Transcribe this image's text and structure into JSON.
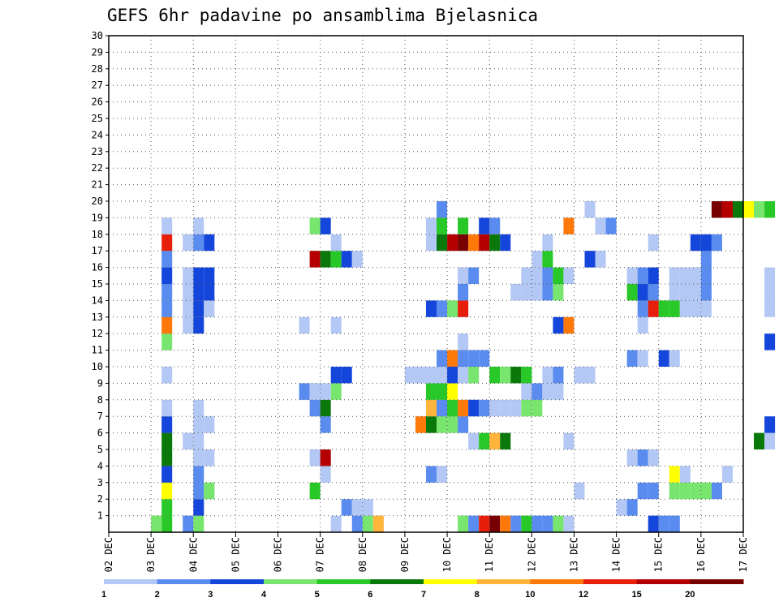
{
  "chart_data": {
    "type": "heatmap",
    "title": "GEFS 6hr padavine po ansamblima Bjelasnica",
    "xlabel": "",
    "ylabel": "",
    "x_ticks": [
      "02 DEC",
      "03 DEC",
      "04 DEC",
      "05 DEC",
      "06 DEC",
      "07 DEC",
      "08 DEC",
      "09 DEC",
      "10 DEC",
      "11 DEC",
      "12 DEC",
      "13 DEC",
      "14 DEC",
      "15 DEC",
      "16 DEC",
      "17 DEC"
    ],
    "y_ticks": [
      1,
      2,
      3,
      4,
      5,
      6,
      7,
      8,
      9,
      10,
      11,
      12,
      13,
      14,
      15,
      16,
      17,
      18,
      19,
      20,
      21,
      22,
      23,
      24,
      25,
      26,
      27,
      28,
      29,
      30
    ],
    "xlim": [
      "02 DEC 00Z",
      "17 DEC 00Z"
    ],
    "ylim": [
      0,
      30
    ],
    "grid": true,
    "legend_position": "bottom",
    "time_step_hours": 6,
    "legend": {
      "thresholds": [
        "1",
        "2",
        "3",
        "4",
        "5",
        "6",
        "7",
        "8",
        "10",
        "12",
        "15",
        "20"
      ],
      "colors": [
        "#b4c8f5",
        "#5a8cf0",
        "#1446dc",
        "#78e66e",
        "#28c828",
        "#0a780a",
        "#ffff00",
        "#ffb43c",
        "#ff780a",
        "#e61e0a",
        "#b40000",
        "#780000"
      ]
    },
    "members": [
      {
        "member": 1,
        "cells": [
          [
            "03 DEC 12Z",
            5
          ],
          [
            "03 DEC 06Z",
            4
          ],
          [
            "04 DEC 00Z",
            2
          ],
          [
            "04 DEC 06Z",
            4
          ],
          [
            "07 DEC 12Z",
            1
          ],
          [
            "08 DEC 00Z",
            2
          ],
          [
            "08 DEC 06Z",
            4
          ],
          [
            "08 DEC 12Z",
            8
          ],
          [
            "10 DEC 12Z",
            4
          ],
          [
            "10 DEC 18Z",
            2
          ],
          [
            "11 DEC 00Z",
            12
          ],
          [
            "11 DEC 06Z",
            20
          ],
          [
            "11 DEC 12Z",
            10
          ],
          [
            "11 DEC 18Z",
            2
          ],
          [
            "12 DEC 00Z",
            5
          ],
          [
            "12 DEC 06Z",
            2
          ],
          [
            "12 DEC 12Z",
            2
          ],
          [
            "12 DEC 18Z",
            4
          ],
          [
            "13 DEC 00Z",
            1
          ],
          [
            "15 DEC 00Z",
            3
          ],
          [
            "15 DEC 06Z",
            2
          ],
          [
            "15 DEC 12Z",
            2
          ]
        ]
      },
      {
        "member": 2,
        "cells": [
          [
            "03 DEC 12Z",
            5
          ],
          [
            "04 DEC 06Z",
            3
          ],
          [
            "07 DEC 18Z",
            2
          ],
          [
            "08 DEC 00Z",
            1
          ],
          [
            "08 DEC 06Z",
            1
          ],
          [
            "14 DEC 06Z",
            1
          ],
          [
            "14 DEC 12Z",
            2
          ]
        ]
      },
      {
        "member": 3,
        "cells": [
          [
            "03 DEC 12Z",
            7
          ],
          [
            "04 DEC 06Z",
            2
          ],
          [
            "04 DEC 12Z",
            4
          ],
          [
            "07 DEC 00Z",
            5
          ],
          [
            "13 DEC 06Z",
            1
          ],
          [
            "14 DEC 18Z",
            2
          ],
          [
            "15 DEC 00Z",
            2
          ],
          [
            "15 DEC 12Z",
            4
          ],
          [
            "15 DEC 18Z",
            4
          ],
          [
            "16 DEC 00Z",
            4
          ],
          [
            "16 DEC 06Z",
            4
          ],
          [
            "16 DEC 12Z",
            2
          ]
        ]
      },
      {
        "member": 4,
        "cells": [
          [
            "03 DEC 12Z",
            3
          ],
          [
            "04 DEC 06Z",
            2
          ],
          [
            "07 DEC 06Z",
            1
          ],
          [
            "09 DEC 18Z",
            2
          ],
          [
            "10 DEC 00Z",
            1
          ],
          [
            "15 DEC 12Z",
            7
          ],
          [
            "15 DEC 18Z",
            1
          ],
          [
            "16 DEC 18Z",
            1
          ]
        ]
      },
      {
        "member": 5,
        "cells": [
          [
            "03 DEC 12Z",
            6
          ],
          [
            "04 DEC 06Z",
            1
          ],
          [
            "04 DEC 12Z",
            1
          ],
          [
            "07 DEC 00Z",
            1
          ],
          [
            "07 DEC 06Z",
            15
          ],
          [
            "14 DEC 12Z",
            1
          ],
          [
            "14 DEC 18Z",
            2
          ],
          [
            "15 DEC 00Z",
            1
          ]
        ]
      },
      {
        "member": 6,
        "cells": [
          [
            "03 DEC 12Z",
            6
          ],
          [
            "04 DEC 00Z",
            1
          ],
          [
            "04 DEC 06Z",
            1
          ],
          [
            "10 DEC 18Z",
            1
          ],
          [
            "11 DEC 00Z",
            5
          ],
          [
            "11 DEC 06Z",
            8
          ],
          [
            "11 DEC 12Z",
            6
          ],
          [
            "13 DEC 00Z",
            1
          ],
          [
            "17 DEC 12Z",
            6
          ],
          [
            "17 DEC 18Z",
            1
          ]
        ]
      },
      {
        "member": 7,
        "cells": [
          [
            "03 DEC 12Z",
            3
          ],
          [
            "04 DEC 06Z",
            1
          ],
          [
            "04 DEC 12Z",
            1
          ],
          [
            "07 DEC 06Z",
            2
          ],
          [
            "09 DEC 12Z",
            10
          ],
          [
            "09 DEC 18Z",
            6
          ],
          [
            "10 DEC 00Z",
            4
          ],
          [
            "10 DEC 06Z",
            4
          ],
          [
            "10 DEC 12Z",
            2
          ],
          [
            "17 DEC 18Z",
            3
          ]
        ]
      },
      {
        "member": 8,
        "cells": [
          [
            "03 DEC 12Z",
            1
          ],
          [
            "04 DEC 06Z",
            1
          ],
          [
            "07 DEC 00Z",
            2
          ],
          [
            "07 DEC 06Z",
            6
          ],
          [
            "09 DEC 18Z",
            8
          ],
          [
            "10 DEC 00Z",
            2
          ],
          [
            "10 DEC 06Z",
            5
          ],
          [
            "10 DEC 12Z",
            10
          ],
          [
            "10 DEC 18Z",
            3
          ],
          [
            "11 DEC 00Z",
            2
          ],
          [
            "11 DEC 06Z",
            1
          ],
          [
            "11 DEC 12Z",
            1
          ],
          [
            "11 DEC 18Z",
            1
          ],
          [
            "12 DEC 00Z",
            4
          ],
          [
            "12 DEC 06Z",
            4
          ]
        ]
      },
      {
        "member": 9,
        "cells": [
          [
            "06 DEC 18Z",
            2
          ],
          [
            "07 DEC 00Z",
            1
          ],
          [
            "07 DEC 06Z",
            1
          ],
          [
            "07 DEC 12Z",
            4
          ],
          [
            "09 DEC 18Z",
            5
          ],
          [
            "10 DEC 00Z",
            5
          ],
          [
            "10 DEC 06Z",
            7
          ],
          [
            "12 DEC 00Z",
            1
          ],
          [
            "12 DEC 06Z",
            2
          ],
          [
            "12 DEC 12Z",
            1
          ],
          [
            "12 DEC 18Z",
            1
          ]
        ]
      },
      {
        "member": 10,
        "cells": [
          [
            "03 DEC 12Z",
            1
          ],
          [
            "07 DEC 12Z",
            3
          ],
          [
            "07 DEC 18Z",
            3
          ],
          [
            "09 DEC 06Z",
            1
          ],
          [
            "09 DEC 12Z",
            1
          ],
          [
            "09 DEC 18Z",
            1
          ],
          [
            "10 DEC 00Z",
            1
          ],
          [
            "10 DEC 06Z",
            3
          ],
          [
            "10 DEC 12Z",
            1
          ],
          [
            "10 DEC 18Z",
            4
          ],
          [
            "11 DEC 06Z",
            5
          ],
          [
            "11 DEC 12Z",
            4
          ],
          [
            "11 DEC 18Z",
            6
          ],
          [
            "12 DEC 00Z",
            5
          ],
          [
            "12 DEC 12Z",
            1
          ],
          [
            "12 DEC 18Z",
            2
          ],
          [
            "13 DEC 06Z",
            1
          ],
          [
            "13 DEC 12Z",
            1
          ]
        ]
      },
      {
        "member": 11,
        "cells": [
          [
            "10 DEC 00Z",
            2
          ],
          [
            "10 DEC 06Z",
            10
          ],
          [
            "10 DEC 12Z",
            2
          ],
          [
            "10 DEC 18Z",
            2
          ],
          [
            "11 DEC 00Z",
            2
          ],
          [
            "14 DEC 12Z",
            2
          ],
          [
            "14 DEC 18Z",
            1
          ],
          [
            "15 DEC 06Z",
            3
          ],
          [
            "15 DEC 12Z",
            1
          ]
        ]
      },
      {
        "member": 12,
        "cells": [
          [
            "03 DEC 12Z",
            4
          ],
          [
            "10 DEC 12Z",
            1
          ],
          [
            "17 DEC 18Z",
            3
          ]
        ]
      },
      {
        "member": 13,
        "cells": [
          [
            "03 DEC 12Z",
            10
          ],
          [
            "04 DEC 00Z",
            1
          ],
          [
            "04 DEC 06Z",
            3
          ],
          [
            "06 DEC 18Z",
            1
          ],
          [
            "07 DEC 12Z",
            1
          ],
          [
            "12 DEC 18Z",
            3
          ],
          [
            "13 DEC 00Z",
            10
          ],
          [
            "14 DEC 18Z",
            1
          ]
        ]
      },
      {
        "member": 14,
        "cells": [
          [
            "03 DEC 12Z",
            2
          ],
          [
            "04 DEC 00Z",
            1
          ],
          [
            "04 DEC 06Z",
            3
          ],
          [
            "04 DEC 12Z",
            1
          ],
          [
            "09 DEC 18Z",
            3
          ],
          [
            "10 DEC 00Z",
            2
          ],
          [
            "10 DEC 06Z",
            4
          ],
          [
            "10 DEC 12Z",
            12
          ],
          [
            "14 DEC 18Z",
            2
          ],
          [
            "15 DEC 00Z",
            12
          ],
          [
            "15 DEC 06Z",
            5
          ],
          [
            "15 DEC 12Z",
            5
          ],
          [
            "15 DEC 18Z",
            1
          ],
          [
            "16 DEC 00Z",
            1
          ],
          [
            "16 DEC 06Z",
            1
          ],
          [
            "17 DEC 18Z",
            1
          ]
        ]
      },
      {
        "member": 15,
        "cells": [
          [
            "03 DEC 12Z",
            2
          ],
          [
            "04 DEC 00Z",
            1
          ],
          [
            "04 DEC 06Z",
            3
          ],
          [
            "04 DEC 12Z",
            3
          ],
          [
            "10 DEC 12Z",
            2
          ],
          [
            "11 DEC 18Z",
            1
          ],
          [
            "12 DEC 00Z",
            1
          ],
          [
            "12 DEC 06Z",
            1
          ],
          [
            "12 DEC 12Z",
            2
          ],
          [
            "12 DEC 18Z",
            4
          ],
          [
            "14 DEC 12Z",
            5
          ],
          [
            "14 DEC 18Z",
            3
          ],
          [
            "15 DEC 00Z",
            2
          ],
          [
            "15 DEC 12Z",
            1
          ],
          [
            "15 DEC 18Z",
            1
          ],
          [
            "16 DEC 00Z",
            1
          ],
          [
            "16 DEC 06Z",
            2
          ],
          [
            "17 DEC 18Z",
            1
          ]
        ]
      },
      {
        "member": 16,
        "cells": [
          [
            "03 DEC 12Z",
            3
          ],
          [
            "04 DEC 00Z",
            1
          ],
          [
            "04 DEC 06Z",
            3
          ],
          [
            "04 DEC 12Z",
            3
          ],
          [
            "10 DEC 12Z",
            1
          ],
          [
            "10 DEC 18Z",
            2
          ],
          [
            "12 DEC 00Z",
            1
          ],
          [
            "12 DEC 06Z",
            1
          ],
          [
            "12 DEC 12Z",
            2
          ],
          [
            "12 DEC 18Z",
            5
          ],
          [
            "13 DEC 00Z",
            1
          ],
          [
            "14 DEC 12Z",
            1
          ],
          [
            "14 DEC 18Z",
            2
          ],
          [
            "15 DEC 00Z",
            3
          ],
          [
            "15 DEC 12Z",
            1
          ],
          [
            "15 DEC 18Z",
            1
          ],
          [
            "16 DEC 00Z",
            1
          ],
          [
            "16 DEC 06Z",
            2
          ],
          [
            "17 DEC 18Z",
            1
          ]
        ]
      },
      {
        "member": 17,
        "cells": [
          [
            "03 DEC 12Z",
            2
          ],
          [
            "07 DEC 00Z",
            15
          ],
          [
            "07 DEC 06Z",
            6
          ],
          [
            "07 DEC 12Z",
            5
          ],
          [
            "07 DEC 18Z",
            3
          ],
          [
            "08 DEC 00Z",
            1
          ],
          [
            "12 DEC 06Z",
            1
          ],
          [
            "12 DEC 12Z",
            5
          ],
          [
            "13 DEC 12Z",
            3
          ],
          [
            "13 DEC 18Z",
            1
          ],
          [
            "16 DEC 06Z",
            2
          ]
        ]
      },
      {
        "member": 18,
        "cells": [
          [
            "03 DEC 12Z",
            12
          ],
          [
            "04 DEC 00Z",
            1
          ],
          [
            "04 DEC 06Z",
            2
          ],
          [
            "04 DEC 12Z",
            3
          ],
          [
            "07 DEC 12Z",
            1
          ],
          [
            "09 DEC 18Z",
            1
          ],
          [
            "10 DEC 00Z",
            6
          ],
          [
            "10 DEC 06Z",
            15
          ],
          [
            "10 DEC 12Z",
            20
          ],
          [
            "10 DEC 18Z",
            10
          ],
          [
            "11 DEC 00Z",
            15
          ],
          [
            "11 DEC 06Z",
            6
          ],
          [
            "11 DEC 12Z",
            3
          ],
          [
            "12 DEC 12Z",
            1
          ],
          [
            "15 DEC 00Z",
            1
          ],
          [
            "16 DEC 00Z",
            3
          ],
          [
            "16 DEC 06Z",
            3
          ],
          [
            "16 DEC 12Z",
            2
          ]
        ]
      },
      {
        "member": 19,
        "cells": [
          [
            "03 DEC 12Z",
            1
          ],
          [
            "04 DEC 06Z",
            1
          ],
          [
            "07 DEC 00Z",
            4
          ],
          [
            "07 DEC 06Z",
            3
          ],
          [
            "09 DEC 18Z",
            1
          ],
          [
            "10 DEC 00Z",
            5
          ],
          [
            "10 DEC 12Z",
            5
          ],
          [
            "11 DEC 00Z",
            3
          ],
          [
            "11 DEC 06Z",
            2
          ],
          [
            "13 DEC 00Z",
            10
          ],
          [
            "13 DEC 18Z",
            1
          ],
          [
            "14 DEC 00Z",
            2
          ]
        ]
      },
      {
        "member": 20,
        "cells": [
          [
            "10 DEC 00Z",
            2
          ],
          [
            "13 DEC 12Z",
            1
          ],
          [
            "16 DEC 12Z",
            20
          ],
          [
            "16 DEC 18Z",
            15
          ],
          [
            "17 DEC 00Z",
            6
          ],
          [
            "17 DEC 06Z",
            7
          ],
          [
            "17 DEC 12Z",
            4
          ],
          [
            "17 DEC 18Z",
            5
          ]
        ]
      }
    ]
  }
}
